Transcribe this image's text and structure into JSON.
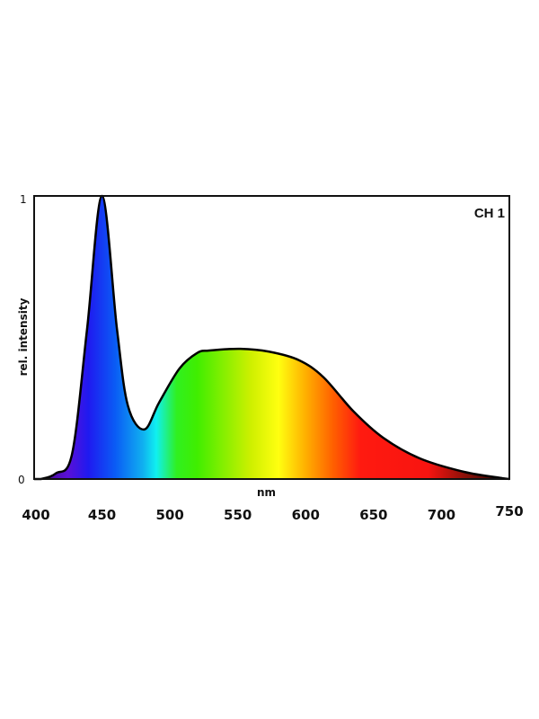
{
  "chart_data": {
    "type": "area",
    "title": "",
    "annotation": "CH 1",
    "xlabel": "nm",
    "ylabel": "rel. intensity",
    "xlim": [
      400,
      750
    ],
    "ylim": [
      0,
      1
    ],
    "x_ticks": [
      "400",
      "450",
      "500",
      "550",
      "600",
      "650",
      "700",
      "750"
    ],
    "y_ticks": [
      "0",
      "1"
    ],
    "grid": false,
    "fill": "visible-spectrum gradient by wavelength",
    "line_color": "#000000",
    "series": [
      {
        "x": [
          405,
          416,
          428,
          439,
          450,
          461,
          469,
          481,
          492,
          507,
          520,
          529,
          552,
          573,
          595,
          613,
          635,
          657,
          684,
          717,
          745
        ],
        "y": [
          0,
          0.02,
          0.09,
          0.53,
          1.0,
          0.53,
          0.26,
          0.175,
          0.27,
          0.39,
          0.445,
          0.454,
          0.46,
          0.45,
          0.42,
          0.36,
          0.24,
          0.146,
          0.073,
          0.025,
          0.003
        ]
      }
    ]
  }
}
